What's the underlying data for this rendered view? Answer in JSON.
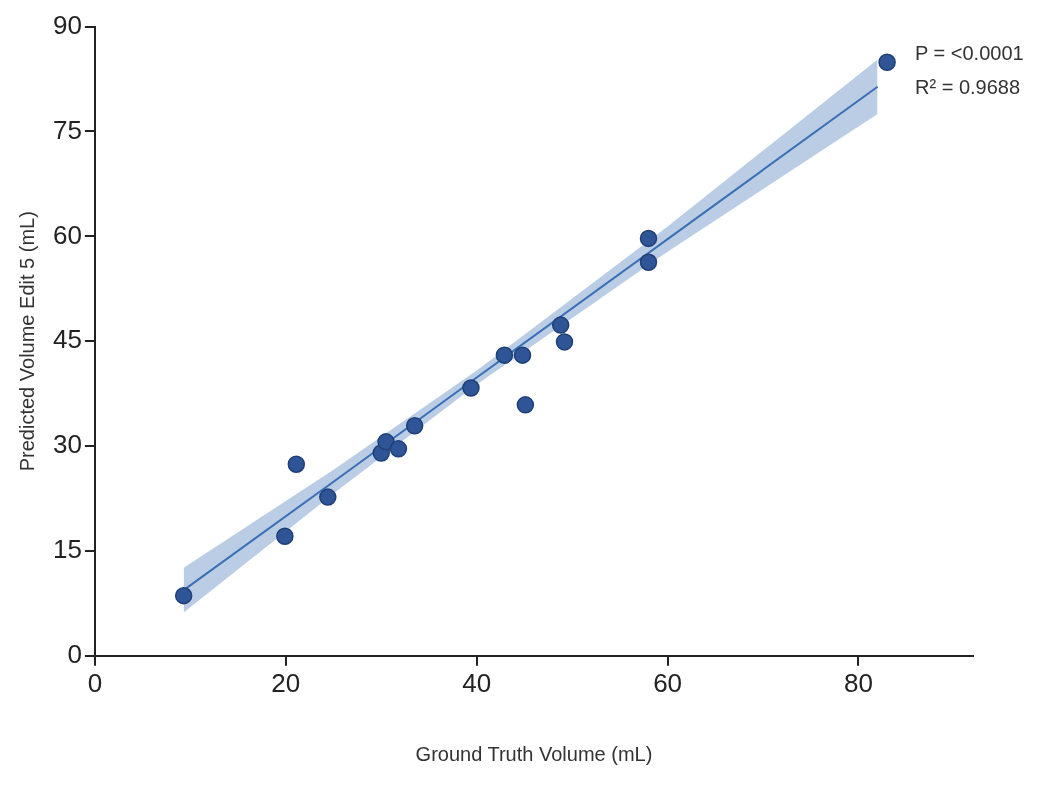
{
  "chart_data": {
    "type": "scatter",
    "xlabel": "Ground Truth Volume (mL)",
    "ylabel": "Predicted Volume Edit 5 (mL)",
    "xlim": [
      0,
      92
    ],
    "xticks": [
      0,
      20,
      40,
      60,
      80
    ],
    "ylim": [
      0,
      90
    ],
    "yticks": [
      0,
      15,
      30,
      45,
      60,
      75,
      90
    ],
    "grid": false,
    "legend": false,
    "marker": "circle",
    "annotations": [
      "P = <0.0001",
      "R² = 0.9688"
    ],
    "series": [
      {
        "color": "#2f5597",
        "x": [
          9.3,
          19.9,
          21.1,
          24.4,
          30.0,
          30.5,
          31.8,
          33.5,
          39.4,
          42.9,
          44.8,
          45.1,
          48.8,
          49.2,
          58.0,
          58.0,
          83.0
        ],
        "values": [
          8.6,
          17.1,
          27.4,
          22.7,
          29.0,
          30.6,
          29.6,
          32.9,
          38.3,
          43.0,
          43.0,
          35.9,
          47.3,
          44.9,
          59.7,
          56.3,
          84.9
        ]
      },
      {
        "type": "line",
        "color": "#3a6fb5",
        "line_style": "solid",
        "marker": "none",
        "x": [
          9.3,
          25,
          40,
          60,
          82
        ],
        "values": [
          9.4,
          24.9,
          39.8,
          59.6,
          81.4
        ],
        "lower": [
          6.2,
          23.2,
          38.8,
          57.8,
          77.5
        ],
        "upper": [
          12.6,
          26.6,
          40.8,
          61.4,
          85.3
        ]
      }
    ]
  }
}
